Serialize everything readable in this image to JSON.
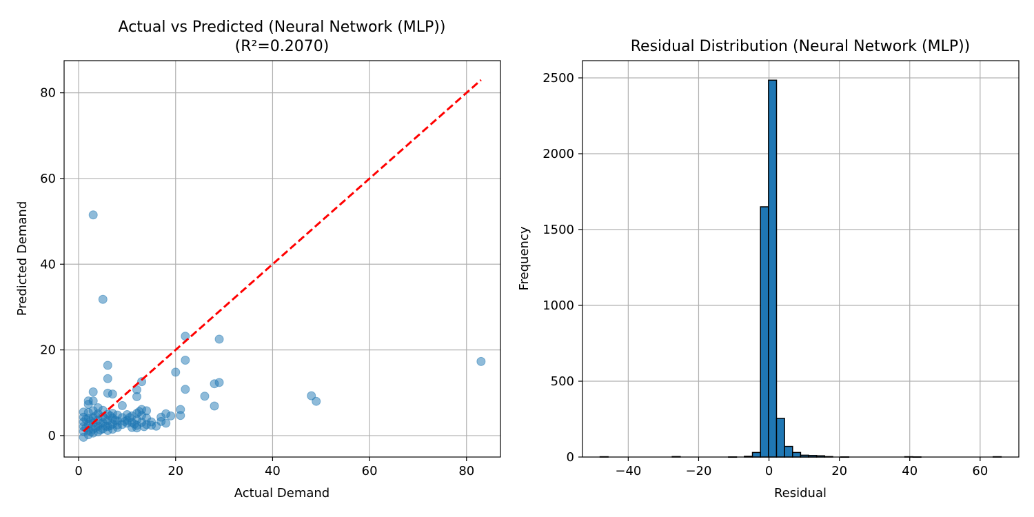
{
  "colors": {
    "point": "#1f77b4",
    "bar": "#1f77b4",
    "bar_edge": "#000000",
    "ref_line": "#ff0000",
    "grid": "#b0b0b0"
  },
  "chart_data": [
    {
      "type": "scatter",
      "title": "Actual vs Predicted (Neural Network (MLP))",
      "subtitle": "(R²=0.2070)",
      "xlabel": "Actual Demand",
      "ylabel": "Predicted Demand",
      "xlim": [
        -3,
        87
      ],
      "ylim": [
        -5,
        87.5
      ],
      "xticks": [
        0,
        20,
        40,
        60,
        80
      ],
      "yticks": [
        0,
        20,
        40,
        60,
        80
      ],
      "grid": true,
      "reference_line": {
        "style": "dashed",
        "color": "red",
        "x": [
          1,
          83
        ],
        "y": [
          1,
          83
        ]
      },
      "points": [
        [
          3,
          51.5
        ],
        [
          5,
          31.8
        ],
        [
          6,
          16.4
        ],
        [
          6,
          13.3
        ],
        [
          13,
          12.6
        ],
        [
          12,
          10.7
        ],
        [
          3,
          10.2
        ],
        [
          6,
          9.9
        ],
        [
          7,
          9.7
        ],
        [
          12,
          9.1
        ],
        [
          22,
          23.2
        ],
        [
          29,
          22.5
        ],
        [
          22,
          17.6
        ],
        [
          20,
          14.8
        ],
        [
          29,
          12.4
        ],
        [
          28,
          12.1
        ],
        [
          22,
          10.8
        ],
        [
          26,
          9.2
        ],
        [
          48,
          9.3
        ],
        [
          49,
          8.0
        ],
        [
          28,
          6.9
        ],
        [
          83,
          17.3
        ],
        [
          21,
          6.1
        ],
        [
          21,
          4.7
        ],
        [
          18,
          5.1
        ],
        [
          18,
          2.9
        ],
        [
          17,
          4.3
        ],
        [
          17,
          3.3
        ],
        [
          19,
          4.6
        ],
        [
          16,
          2.2
        ],
        [
          14,
          2.6
        ],
        [
          14,
          5.8
        ],
        [
          15,
          3.2
        ],
        [
          13,
          6.1
        ],
        [
          12,
          1.8
        ],
        [
          11,
          4.6
        ],
        [
          10,
          3.6
        ],
        [
          9,
          7.0
        ],
        [
          8,
          2.5
        ],
        [
          7,
          5.2
        ],
        [
          2,
          8.1
        ],
        [
          3,
          8.1
        ],
        [
          2,
          7.3
        ],
        [
          4,
          6.5
        ],
        [
          1,
          5.5
        ],
        [
          1,
          4.3
        ],
        [
          1,
          3.2
        ],
        [
          1,
          2.1
        ],
        [
          1,
          1.0
        ],
        [
          1,
          -0.4
        ],
        [
          2,
          5.4
        ],
        [
          2,
          4.0
        ],
        [
          2,
          2.6
        ],
        [
          2,
          1.2
        ],
        [
          2,
          0.2
        ],
        [
          3,
          5.8
        ],
        [
          3,
          4.2
        ],
        [
          3,
          2.9
        ],
        [
          3,
          1.5
        ],
        [
          3,
          0.6
        ],
        [
          4,
          5.1
        ],
        [
          4,
          3.6
        ],
        [
          4,
          2.2
        ],
        [
          4,
          0.9
        ],
        [
          5,
          5.9
        ],
        [
          5,
          4.4
        ],
        [
          5,
          3.0
        ],
        [
          5,
          1.6
        ],
        [
          6,
          5.0
        ],
        [
          6,
          3.5
        ],
        [
          6,
          2.1
        ],
        [
          6,
          1.2
        ],
        [
          7,
          4.1
        ],
        [
          7,
          2.7
        ],
        [
          7,
          1.5
        ],
        [
          8,
          4.8
        ],
        [
          8,
          3.4
        ],
        [
          8,
          1.9
        ],
        [
          9,
          4.2
        ],
        [
          9,
          2.6
        ],
        [
          10,
          4.9
        ],
        [
          10,
          2.9
        ],
        [
          11,
          3.1
        ],
        [
          11,
          1.9
        ],
        [
          12,
          5.2
        ],
        [
          12,
          3.7
        ],
        [
          12,
          2.4
        ],
        [
          13,
          4.7
        ],
        [
          13,
          3.1
        ],
        [
          14,
          4.1
        ],
        [
          15,
          2.4
        ],
        [
          1.5,
          3.8
        ],
        [
          2.5,
          3.4
        ],
        [
          3.5,
          4.6
        ],
        [
          4.5,
          2.8
        ],
        [
          5.5,
          3.9
        ],
        [
          6.5,
          2.3
        ],
        [
          7.5,
          3.6
        ],
        [
          9.5,
          3.3
        ],
        [
          10.5,
          4.2
        ],
        [
          11.5,
          2.7
        ],
        [
          12.5,
          5.6
        ],
        [
          13.5,
          2.1
        ],
        [
          1.5,
          1.8
        ],
        [
          2.5,
          0.9
        ],
        [
          3.5,
          1.9
        ],
        [
          4.5,
          1.3
        ],
        [
          5.5,
          2.2
        ],
        [
          6.5,
          4.6
        ]
      ]
    },
    {
      "type": "bar",
      "title": "Residual Distribution (Neural Network (MLP))",
      "xlabel": "Residual",
      "ylabel": "Frequency",
      "xlim": [
        -53,
        71
      ],
      "ylim": [
        0,
        2500
      ],
      "xticks": [
        -40,
        -20,
        0,
        20,
        40,
        60
      ],
      "yticks": [
        0,
        500,
        1000,
        1500,
        2000,
        2500
      ],
      "grid": true,
      "bin_width": 2.28,
      "bin_starts": [
        -48.0,
        -27.5,
        -11.5,
        -7.0,
        -4.7,
        -2.42,
        -0.14,
        2.14,
        4.42,
        6.7,
        8.98,
        11.26,
        13.54,
        15.82,
        20.4,
        38.6,
        40.9,
        63.7
      ],
      "values": [
        2,
        3,
        1,
        5,
        30,
        1650,
        2485,
        255,
        70,
        30,
        12,
        10,
        8,
        3,
        1,
        2,
        1,
        2
      ]
    }
  ]
}
